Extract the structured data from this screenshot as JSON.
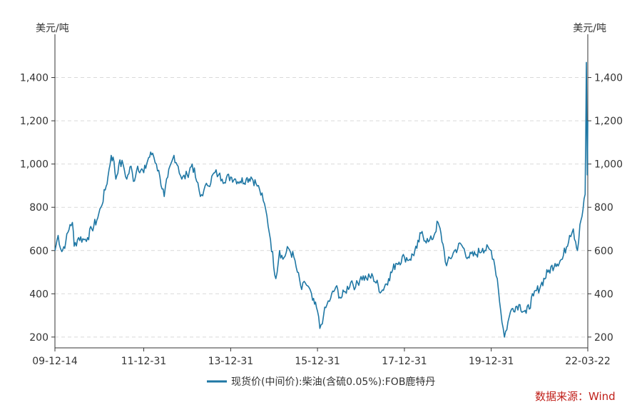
{
  "chart_data": {
    "type": "line",
    "y_unit_left": "美元/吨",
    "y_unit_right": "美元/吨",
    "ylim": [
      150,
      1600
    ],
    "yticks": [
      200,
      400,
      600,
      800,
      1000,
      1200,
      1400
    ],
    "ytick_labels": [
      "200",
      "400",
      "600",
      "800",
      "1,000",
      "1,200",
      "1,400"
    ],
    "x_range": [
      "2009-12-14",
      "2022-03-22"
    ],
    "xticks": [
      "2009-12-14",
      "2011-12-31",
      "2013-12-31",
      "2015-12-31",
      "2017-12-31",
      "2019-12-31",
      "2022-03-22"
    ],
    "xtick_labels": [
      "09-12-14",
      "11-12-31",
      "13-12-31",
      "15-12-31",
      "17-12-31",
      "19-12-31",
      "22-03-22"
    ],
    "grid": true,
    "legend_position": "bottom-center",
    "series": [
      {
        "name": "现货价(中间价):柴油(含硫0.05%):FOB鹿特丹",
        "color": "#1f77a4",
        "points": [
          [
            "2009-12-14",
            600
          ],
          [
            "2010-01-10",
            670
          ],
          [
            "2010-02-10",
            595
          ],
          [
            "2010-03-15",
            640
          ],
          [
            "2010-04-20",
            720
          ],
          [
            "2010-05-10",
            730
          ],
          [
            "2010-05-25",
            620
          ],
          [
            "2010-07-01",
            660
          ],
          [
            "2010-08-15",
            650
          ],
          [
            "2010-09-15",
            660
          ],
          [
            "2010-10-20",
            700
          ],
          [
            "2010-12-01",
            740
          ],
          [
            "2011-01-05",
            800
          ],
          [
            "2011-02-10",
            880
          ],
          [
            "2011-03-05",
            940
          ],
          [
            "2011-04-01",
            1040
          ],
          [
            "2011-04-25",
            1010
          ],
          [
            "2011-05-10",
            930
          ],
          [
            "2011-06-05",
            1000
          ],
          [
            "2011-07-10",
            1000
          ],
          [
            "2011-08-10",
            930
          ],
          [
            "2011-09-15",
            990
          ],
          [
            "2011-10-05",
            920
          ],
          [
            "2011-11-10",
            990
          ],
          [
            "2011-12-31",
            960
          ],
          [
            "2012-02-10",
            1030
          ],
          [
            "2012-03-15",
            1050
          ],
          [
            "2012-04-15",
            1000
          ],
          [
            "2012-05-15",
            940
          ],
          [
            "2012-06-20",
            850
          ],
          [
            "2012-07-20",
            940
          ],
          [
            "2012-09-10",
            1040
          ],
          [
            "2012-10-15",
            990
          ],
          [
            "2012-11-15",
            930
          ],
          [
            "2012-12-31",
            950
          ],
          [
            "2013-02-10",
            1000
          ],
          [
            "2013-03-20",
            920
          ],
          [
            "2013-04-20",
            850
          ],
          [
            "2013-05-20",
            880
          ],
          [
            "2013-06-20",
            900
          ],
          [
            "2013-08-20",
            960
          ],
          [
            "2013-09-20",
            950
          ],
          [
            "2013-10-20",
            930
          ],
          [
            "2013-12-31",
            940
          ],
          [
            "2014-02-10",
            930
          ],
          [
            "2014-03-20",
            920
          ],
          [
            "2014-05-10",
            930
          ],
          [
            "2014-06-20",
            940
          ],
          [
            "2014-08-01",
            910
          ],
          [
            "2014-09-01",
            880
          ],
          [
            "2014-10-01",
            830
          ],
          [
            "2014-11-01",
            760
          ],
          [
            "2014-12-01",
            650
          ],
          [
            "2015-01-15",
            470
          ],
          [
            "2015-02-15",
            600
          ],
          [
            "2015-03-15",
            560
          ],
          [
            "2015-05-01",
            610
          ],
          [
            "2015-06-15",
            570
          ],
          [
            "2015-07-15",
            500
          ],
          [
            "2015-08-20",
            420
          ],
          [
            "2015-09-20",
            450
          ],
          [
            "2015-10-20",
            430
          ],
          [
            "2015-11-20",
            370
          ],
          [
            "2015-12-31",
            320
          ],
          [
            "2016-01-20",
            240
          ],
          [
            "2016-02-20",
            300
          ],
          [
            "2016-03-20",
            350
          ],
          [
            "2016-04-20",
            380
          ],
          [
            "2016-06-01",
            430
          ],
          [
            "2016-07-15",
            380
          ],
          [
            "2016-08-20",
            410
          ],
          [
            "2016-10-15",
            460
          ],
          [
            "2016-11-15",
            430
          ],
          [
            "2016-12-31",
            480
          ],
          [
            "2017-02-15",
            470
          ],
          [
            "2017-04-10",
            480
          ],
          [
            "2017-06-20",
            410
          ],
          [
            "2017-08-20",
            470
          ],
          [
            "2017-10-20",
            540
          ],
          [
            "2017-12-31",
            570
          ],
          [
            "2018-02-15",
            560
          ],
          [
            "2018-04-15",
            610
          ],
          [
            "2018-05-20",
            680
          ],
          [
            "2018-07-20",
            640
          ],
          [
            "2018-08-20",
            650
          ],
          [
            "2018-10-10",
            730
          ],
          [
            "2018-11-20",
            630
          ],
          [
            "2018-12-20",
            530
          ],
          [
            "2019-02-15",
            590
          ],
          [
            "2019-04-20",
            630
          ],
          [
            "2019-06-20",
            570
          ],
          [
            "2019-08-20",
            580
          ],
          [
            "2019-10-20",
            610
          ],
          [
            "2019-12-31",
            600
          ],
          [
            "2020-01-20",
            560
          ],
          [
            "2020-02-20",
            470
          ],
          [
            "2020-03-20",
            320
          ],
          [
            "2020-04-20",
            200
          ],
          [
            "2020-05-20",
            270
          ],
          [
            "2020-06-20",
            330
          ],
          [
            "2020-08-20",
            350
          ],
          [
            "2020-10-20",
            310
          ],
          [
            "2020-12-20",
            390
          ],
          [
            "2021-02-20",
            440
          ],
          [
            "2021-04-20",
            500
          ],
          [
            "2021-06-20",
            540
          ],
          [
            "2021-08-20",
            560
          ],
          [
            "2021-10-20",
            670
          ],
          [
            "2021-11-20",
            700
          ],
          [
            "2021-12-10",
            640
          ],
          [
            "2021-12-25",
            600
          ],
          [
            "2022-01-15",
            720
          ],
          [
            "2022-02-10",
            790
          ],
          [
            "2022-02-28",
            860
          ],
          [
            "2022-03-05",
            1150
          ],
          [
            "2022-03-10",
            1470
          ],
          [
            "2022-03-14",
            1180
          ],
          [
            "2022-03-18",
            950
          ],
          [
            "2022-03-22",
            1200
          ]
        ]
      }
    ]
  },
  "source_label": "数据来源：Wind"
}
